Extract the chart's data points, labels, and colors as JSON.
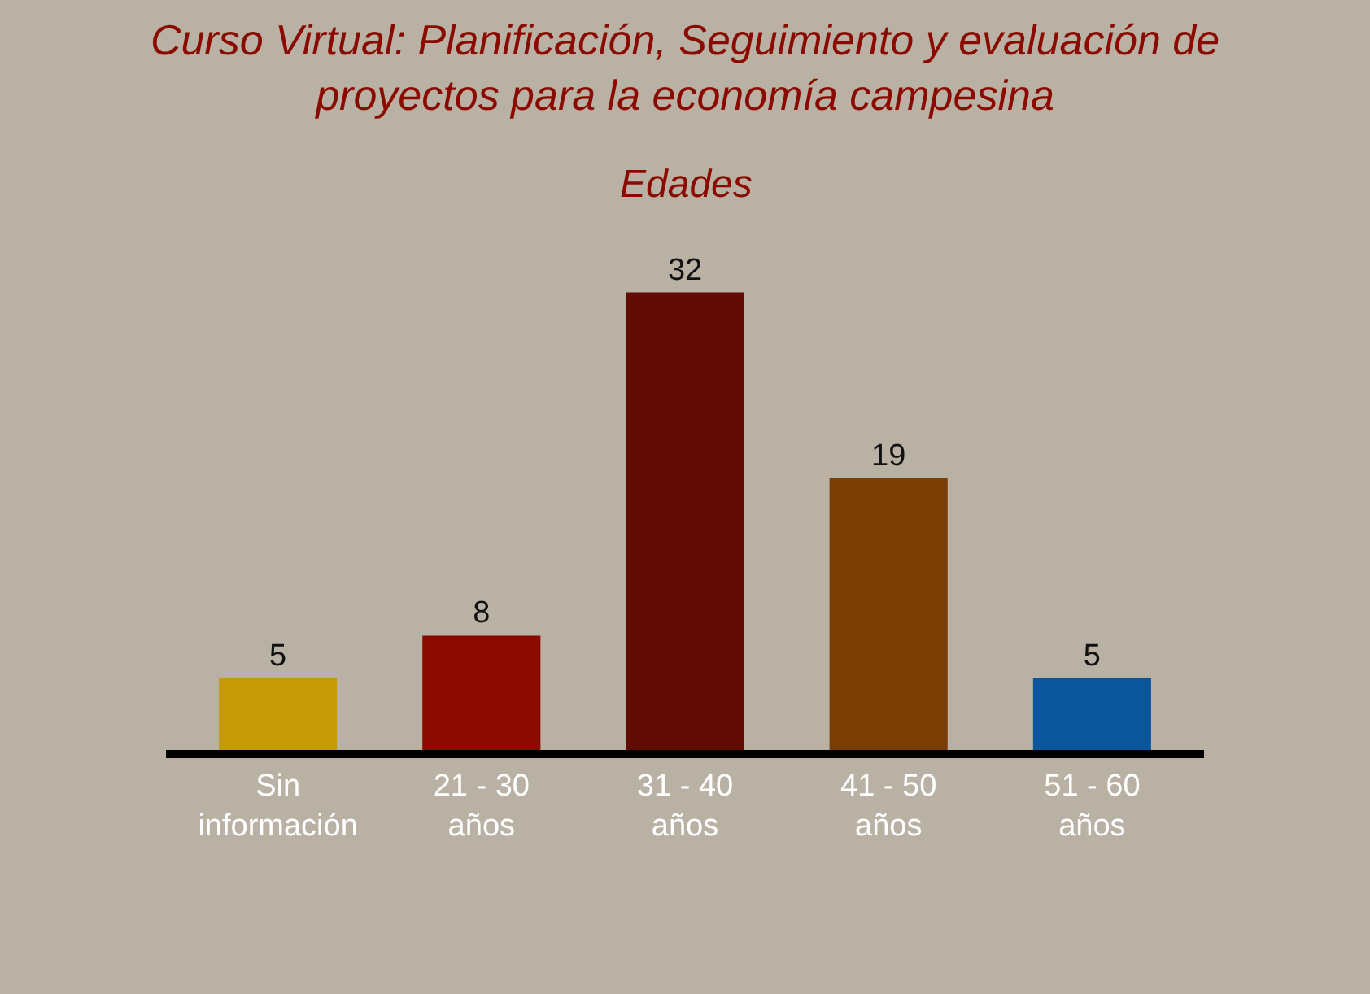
{
  "chart_data": {
    "type": "bar",
    "title": "Curso Virtual: Planificación, Seguimiento y evaluación de\nproyectos para la economía campesina",
    "subtitle": "Edades",
    "categories": [
      "Sin\ninformación",
      "21 - 30\naños",
      "31 - 40\naños",
      "41 - 50\naños",
      "51 - 60\naños"
    ],
    "values": [
      5,
      8,
      32,
      19,
      5
    ],
    "colors": [
      "#c49a06",
      "#8b0a00",
      "#600b04",
      "#7a3d04",
      "#0b559b"
    ],
    "data_labels": true,
    "grid": false
  }
}
